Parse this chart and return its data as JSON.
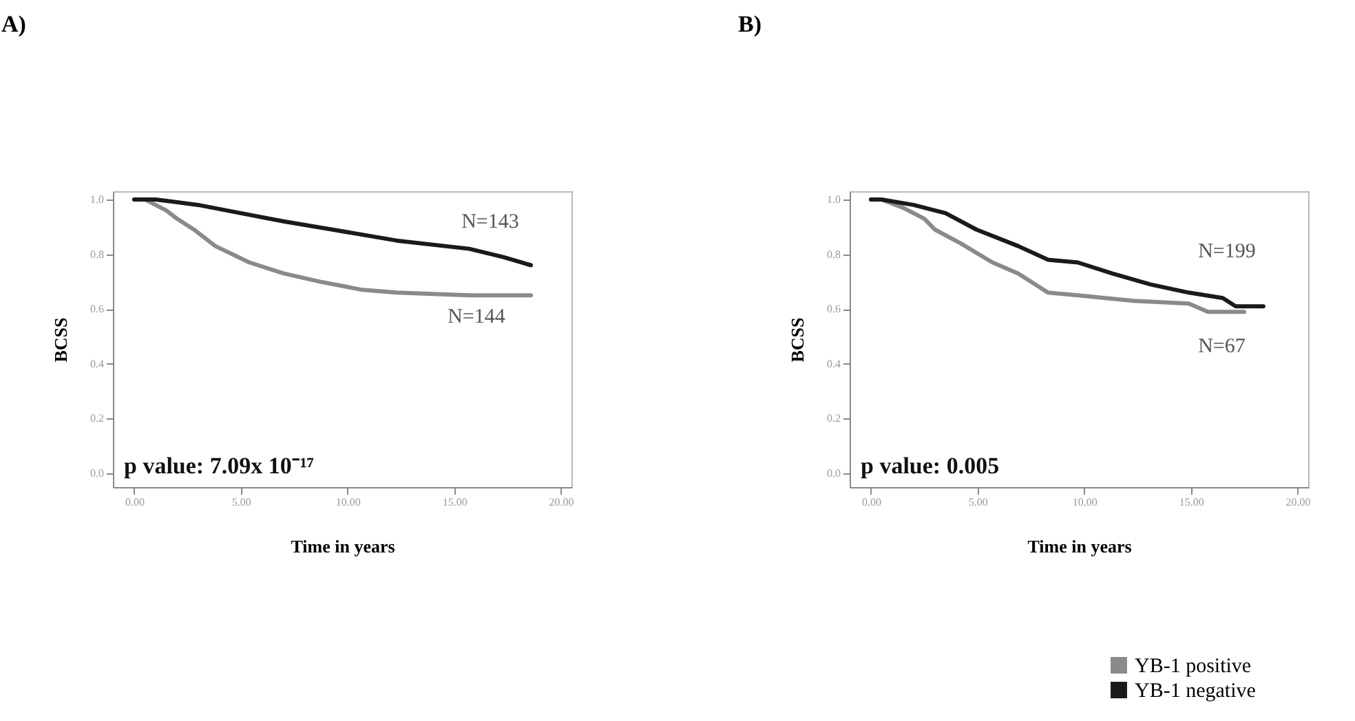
{
  "chart_data": [
    {
      "type": "line",
      "title": "A)",
      "xlabel": "Time in years",
      "ylabel": "BCSS",
      "xlim": [
        -1,
        20.5
      ],
      "ylim": [
        -0.05,
        1.03
      ],
      "xticks": [
        {
          "value": 0,
          "label": "0.00"
        },
        {
          "value": 5,
          "label": "5.00"
        },
        {
          "value": 10,
          "label": "10.00"
        },
        {
          "value": 15,
          "label": "15.00"
        },
        {
          "value": 20,
          "label": "20.00"
        }
      ],
      "yticks": [
        {
          "value": 0,
          "label": "0.0"
        },
        {
          "value": 0.2,
          "label": "0.2"
        },
        {
          "value": 0.4,
          "label": "0.4"
        },
        {
          "value": 0.6,
          "label": "0.6"
        },
        {
          "value": 0.8,
          "label": "0.8"
        },
        {
          "value": 1,
          "label": "1.0"
        }
      ],
      "series": [
        {
          "color": "#8a8a8a",
          "x": [
            0,
            0.5,
            1,
            1.5,
            2,
            2.8,
            3.8,
            5.4,
            7,
            8.7,
            10.7,
            12.3,
            15.7,
            18.6
          ],
          "values": [
            1,
            1,
            0.98,
            0.96,
            0.93,
            0.89,
            0.83,
            0.77,
            0.73,
            0.7,
            0.67,
            0.66,
            0.65,
            0.65
          ]
        },
        {
          "color": "#1a1a1a",
          "x": [
            0,
            1,
            3,
            5,
            7,
            9.3,
            12.3,
            15.7,
            17.3,
            18.6
          ],
          "values": [
            1,
            1,
            0.98,
            0.95,
            0.92,
            0.89,
            0.85,
            0.82,
            0.79,
            0.76
          ]
        }
      ],
      "annotations": [
        "N=143",
        "N=144",
        "p value: 7.09x 10⁻¹⁷"
      ],
      "legend": false
    },
    {
      "type": "line",
      "title": "B)",
      "xlabel": "Time in years",
      "ylabel": "BCSS",
      "xlim": [
        -1,
        20.5
      ],
      "ylim": [
        -0.05,
        1.03
      ],
      "xticks": [
        {
          "value": 0,
          "label": "0.00"
        },
        {
          "value": 5,
          "label": "5.00"
        },
        {
          "value": 10,
          "label": "10.00"
        },
        {
          "value": 15,
          "label": "15.00"
        },
        {
          "value": 20,
          "label": "20.00"
        }
      ],
      "yticks": [
        {
          "value": 0,
          "label": "0.0"
        },
        {
          "value": 0.2,
          "label": "0.2"
        },
        {
          "value": 0.4,
          "label": "0.4"
        },
        {
          "value": 0.6,
          "label": "0.6"
        },
        {
          "value": 0.8,
          "label": "0.8"
        },
        {
          "value": 1,
          "label": "1.0"
        }
      ],
      "series": [
        {
          "name": "YB-1 positive",
          "color": "#8a8a8a",
          "x": [
            0,
            0.5,
            1.5,
            2.5,
            3,
            4.2,
            5.7,
            6.9,
            8.3,
            9.7,
            12.3,
            14.9,
            15.8,
            17.5
          ],
          "values": [
            1,
            1,
            0.97,
            0.93,
            0.89,
            0.84,
            0.77,
            0.73,
            0.66,
            0.65,
            0.63,
            0.62,
            0.59,
            0.59
          ]
        },
        {
          "name": "YB-1 negative",
          "color": "#1a1a1a",
          "x": [
            0,
            0.5,
            2,
            3.5,
            4.95,
            6.9,
            8.3,
            9.7,
            11.3,
            13.1,
            14.9,
            16.5,
            17.1,
            18.4
          ],
          "values": [
            1,
            1,
            0.98,
            0.95,
            0.89,
            0.83,
            0.78,
            0.77,
            0.73,
            0.69,
            0.66,
            0.64,
            0.61,
            0.61
          ]
        }
      ],
      "annotations": [
        "N=199",
        "N=67",
        "p value: 0.005"
      ],
      "legend": "bottom right"
    }
  ]
}
